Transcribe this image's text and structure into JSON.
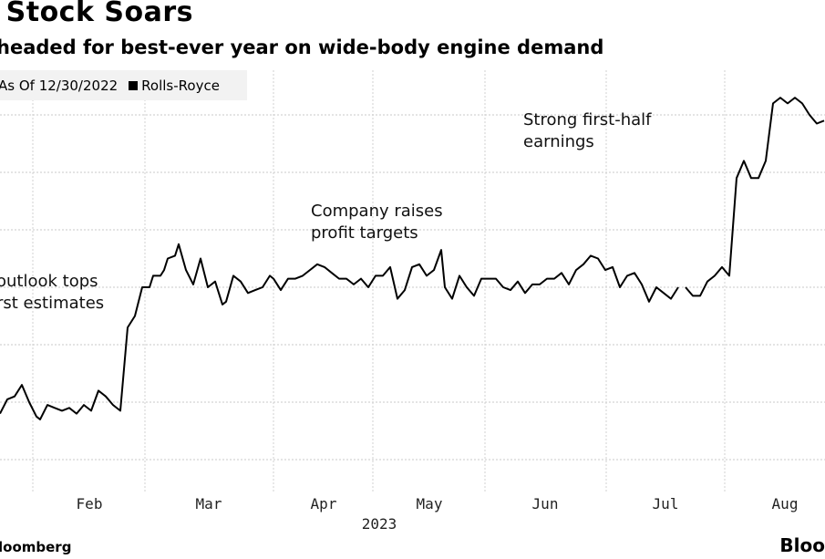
{
  "chart_data": {
    "type": "line",
    "title": "' Stock Soars",
    "subtitle": "headed for best-ever year on wide-body engine demand",
    "legend": {
      "position": "top-left",
      "items": [
        {
          "label": "As Of 12/30/2022",
          "partial": true
        },
        {
          "label": "Rolls-Royce",
          "color": "#000000"
        }
      ]
    },
    "xlabel": "2023",
    "ylabel": "",
    "x_ticks": [
      "Feb",
      "Mar",
      "Apr",
      "May",
      "Jun",
      "Jul",
      "Aug"
    ],
    "x_range": [
      "2023-01-10",
      "2023-08-25"
    ],
    "y_unit": "gridline steps (no tick labels visible)",
    "ylim": [
      -0.3,
      6.5
    ],
    "grid": true,
    "series": [
      {
        "name": "Rolls-Royce",
        "color": "#000000",
        "x_day": [
          0,
          2,
          4,
          6,
          8,
          10,
          11,
          13,
          15,
          17,
          19,
          21,
          23,
          25,
          27,
          29,
          31,
          33,
          35,
          37,
          39,
          41,
          42,
          44,
          45,
          46,
          48,
          49,
          51,
          53,
          55,
          57,
          59,
          61,
          62,
          64,
          66,
          68,
          70,
          72,
          74,
          75,
          77,
          79,
          81,
          83,
          85,
          87,
          89,
          91,
          93,
          95,
          97,
          99,
          101,
          103,
          105,
          107,
          109,
          111,
          113,
          115,
          117,
          119,
          121,
          122,
          124,
          126,
          128,
          130,
          132,
          134,
          136,
          138,
          140,
          142,
          144,
          146,
          148,
          150,
          152,
          154,
          156,
          158,
          160,
          162,
          164,
          166,
          168,
          170,
          172,
          174,
          176,
          178,
          180,
          182,
          184,
          186,
          188,
          190,
          192,
          194,
          196,
          198,
          200,
          202,
          204,
          206,
          208,
          210,
          212,
          214,
          216,
          218,
          220,
          222,
          224,
          226
        ],
        "values": [
          0.8,
          1.05,
          1.1,
          1.3,
          1.0,
          0.75,
          0.7,
          0.95,
          0.9,
          0.85,
          0.9,
          0.8,
          0.95,
          0.85,
          1.2,
          1.1,
          0.95,
          0.85,
          2.3,
          2.5,
          3.0,
          3.0,
          3.2,
          3.2,
          3.3,
          3.5,
          3.55,
          3.75,
          3.3,
          3.05,
          3.5,
          3.0,
          3.1,
          2.7,
          2.75,
          3.2,
          3.1,
          2.9,
          2.95,
          3.0,
          3.2,
          3.15,
          2.95,
          3.15,
          3.15,
          3.2,
          3.3,
          3.4,
          3.35,
          3.25,
          3.15,
          3.15,
          3.05,
          3.15,
          3.0,
          3.2,
          3.2,
          3.35,
          2.8,
          2.95,
          3.35,
          3.4,
          3.2,
          3.3,
          3.65,
          3.0,
          2.8,
          3.2,
          3.0,
          2.85,
          3.15,
          3.15,
          3.15,
          3.0,
          2.95,
          3.1,
          2.9,
          3.05,
          3.05,
          3.15,
          3.15,
          3.25,
          3.05,
          3.3,
          3.4,
          3.55,
          3.5,
          3.3,
          3.35,
          3.0,
          3.2,
          3.25,
          3.05,
          2.75,
          3.0,
          2.9,
          2.8,
          3.0,
          3.0,
          2.85,
          2.85,
          3.1,
          3.2,
          3.35,
          3.2,
          4.9,
          5.2,
          4.9,
          4.9,
          5.2,
          6.2,
          6.3,
          6.2,
          6.3,
          6.2,
          6.0,
          5.85,
          5.9,
          6.15
        ],
        "gaps_after_x_day": [
          186
        ]
      }
    ],
    "annotations": [
      {
        "lines": [
          "outlook tops",
          "rst estimates"
        ]
      },
      {
        "lines": [
          "Company raises",
          "profit targets"
        ]
      },
      {
        "lines": [
          "Strong first-half",
          "earnings"
        ]
      }
    ],
    "source": "loomberg",
    "logo": "Bloo"
  }
}
